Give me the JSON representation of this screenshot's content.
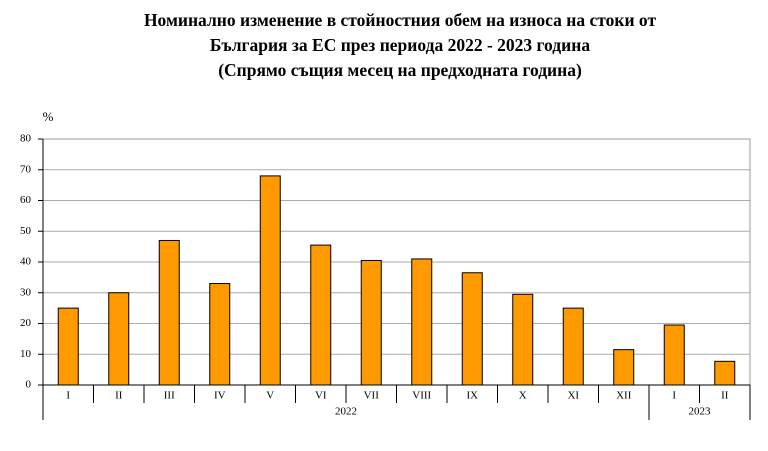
{
  "chart_data": {
    "type": "bar",
    "title": [
      "Номинално изменение в стойностния обем  на износа на стоки от",
      "България за ЕС през периода 2022 - 2023 година",
      "(Спрямо същия месец на предходната година)"
    ],
    "y_label": "%",
    "categories": [
      "I",
      "II",
      "III",
      "IV",
      "V",
      "VI",
      "VII",
      "VIII",
      "IX",
      "X",
      "XI",
      "XII",
      "I",
      "II"
    ],
    "groups": [
      "2022",
      "2023"
    ],
    "values": [
      25,
      30,
      47,
      33,
      68,
      45.5,
      40.5,
      41,
      36.5,
      29.5,
      25,
      11.5,
      19.5,
      7.7
    ],
    "color": "#ff9900",
    "ylim": [
      0,
      80
    ],
    "yticks": [
      0,
      10,
      20,
      30,
      40,
      50,
      60,
      70,
      80
    ],
    "grid": true
  }
}
